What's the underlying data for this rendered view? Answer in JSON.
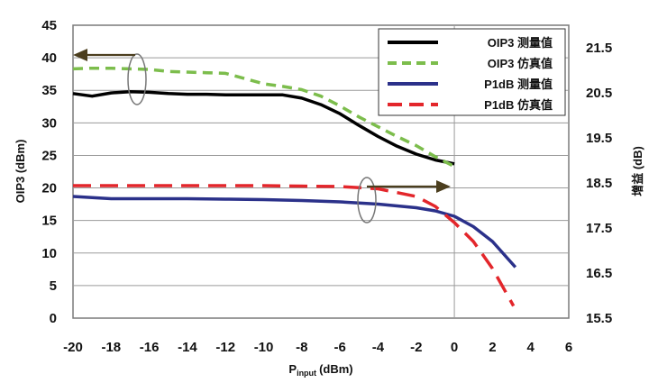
{
  "chart_data": {
    "type": "line",
    "xlabel": "P",
    "xlabel_sub": "input",
    "xlabel_unit": "(dBm)",
    "ylabel": "OIP3 (dBm)",
    "y2label": "增益 (dB)",
    "xlim": [
      -20,
      6
    ],
    "ylim": [
      0,
      45
    ],
    "y2lim": [
      15.5,
      22
    ],
    "x_ticks": [
      -20,
      -18,
      -16,
      -14,
      -12,
      -10,
      -8,
      -6,
      -4,
      -2,
      0,
      2,
      4,
      6
    ],
    "y_ticks": [
      0,
      5,
      10,
      15,
      20,
      25,
      30,
      35,
      40,
      45
    ],
    "y2_ticks": [
      15.5,
      16.5,
      17.5,
      18.5,
      19.5,
      20.5,
      21.5
    ],
    "y2_tick_labels": [
      "15.5",
      "16.5",
      "17.5",
      "18.5",
      "19.5",
      "20.5",
      "21.5"
    ],
    "grid": true,
    "legend_position": "top-right",
    "series": [
      {
        "name": "OIP3 测量值",
        "axis": "left",
        "color": "#000000",
        "dash": "solid",
        "x": [
          -20,
          -19,
          -18,
          -17,
          -16,
          -15,
          -14,
          -13,
          -12,
          -11,
          -10,
          -9,
          -8,
          -7,
          -6,
          -5,
          -4,
          -3,
          -2,
          -1,
          0
        ],
        "y": [
          34.5,
          34.1,
          34.6,
          34.8,
          34.7,
          34.5,
          34.4,
          34.4,
          34.3,
          34.3,
          34.3,
          34.3,
          33.8,
          32.8,
          31.4,
          29.6,
          27.9,
          26.4,
          25.2,
          24.3,
          23.7
        ]
      },
      {
        "name": "OIP3 仿真值",
        "axis": "left",
        "color": "#7cbd4c",
        "dash": "dash",
        "x": [
          -20,
          -19,
          -18,
          -17,
          -16,
          -15,
          -14,
          -13,
          -12,
          -11,
          -10,
          -9,
          -8,
          -7,
          -6,
          -5,
          -4,
          -3,
          -2,
          -1,
          0
        ],
        "y": [
          38.3,
          38.4,
          38.4,
          38.3,
          38.2,
          37.9,
          37.8,
          37.7,
          37.6,
          36.8,
          36.0,
          35.6,
          35.1,
          34.1,
          32.6,
          30.9,
          29.4,
          27.9,
          26.5,
          24.8,
          23.3
        ]
      },
      {
        "name": "P1dB 测量值",
        "axis": "right",
        "color": "#2b318a",
        "dash": "solid",
        "x": [
          -20,
          -18,
          -16,
          -14,
          -12,
          -10,
          -8,
          -6,
          -4,
          -2,
          -1,
          0,
          1,
          2,
          3.2
        ],
        "y": [
          18.2,
          18.15,
          18.15,
          18.15,
          18.14,
          18.13,
          18.11,
          18.08,
          18.03,
          17.95,
          17.88,
          17.76,
          17.53,
          17.2,
          16.63
        ]
      },
      {
        "name": "P1dB 仿真值",
        "axis": "right",
        "color": "#e3262b",
        "dash": "longdash",
        "x": [
          -20,
          -18,
          -16,
          -14,
          -12,
          -10,
          -8,
          -6,
          -4,
          -2,
          -1,
          0,
          1,
          2,
          3.1
        ],
        "y": [
          18.44,
          18.44,
          18.44,
          18.44,
          18.44,
          18.44,
          18.43,
          18.42,
          18.37,
          18.2,
          17.98,
          17.62,
          17.2,
          16.6,
          15.77
        ]
      }
    ]
  }
}
